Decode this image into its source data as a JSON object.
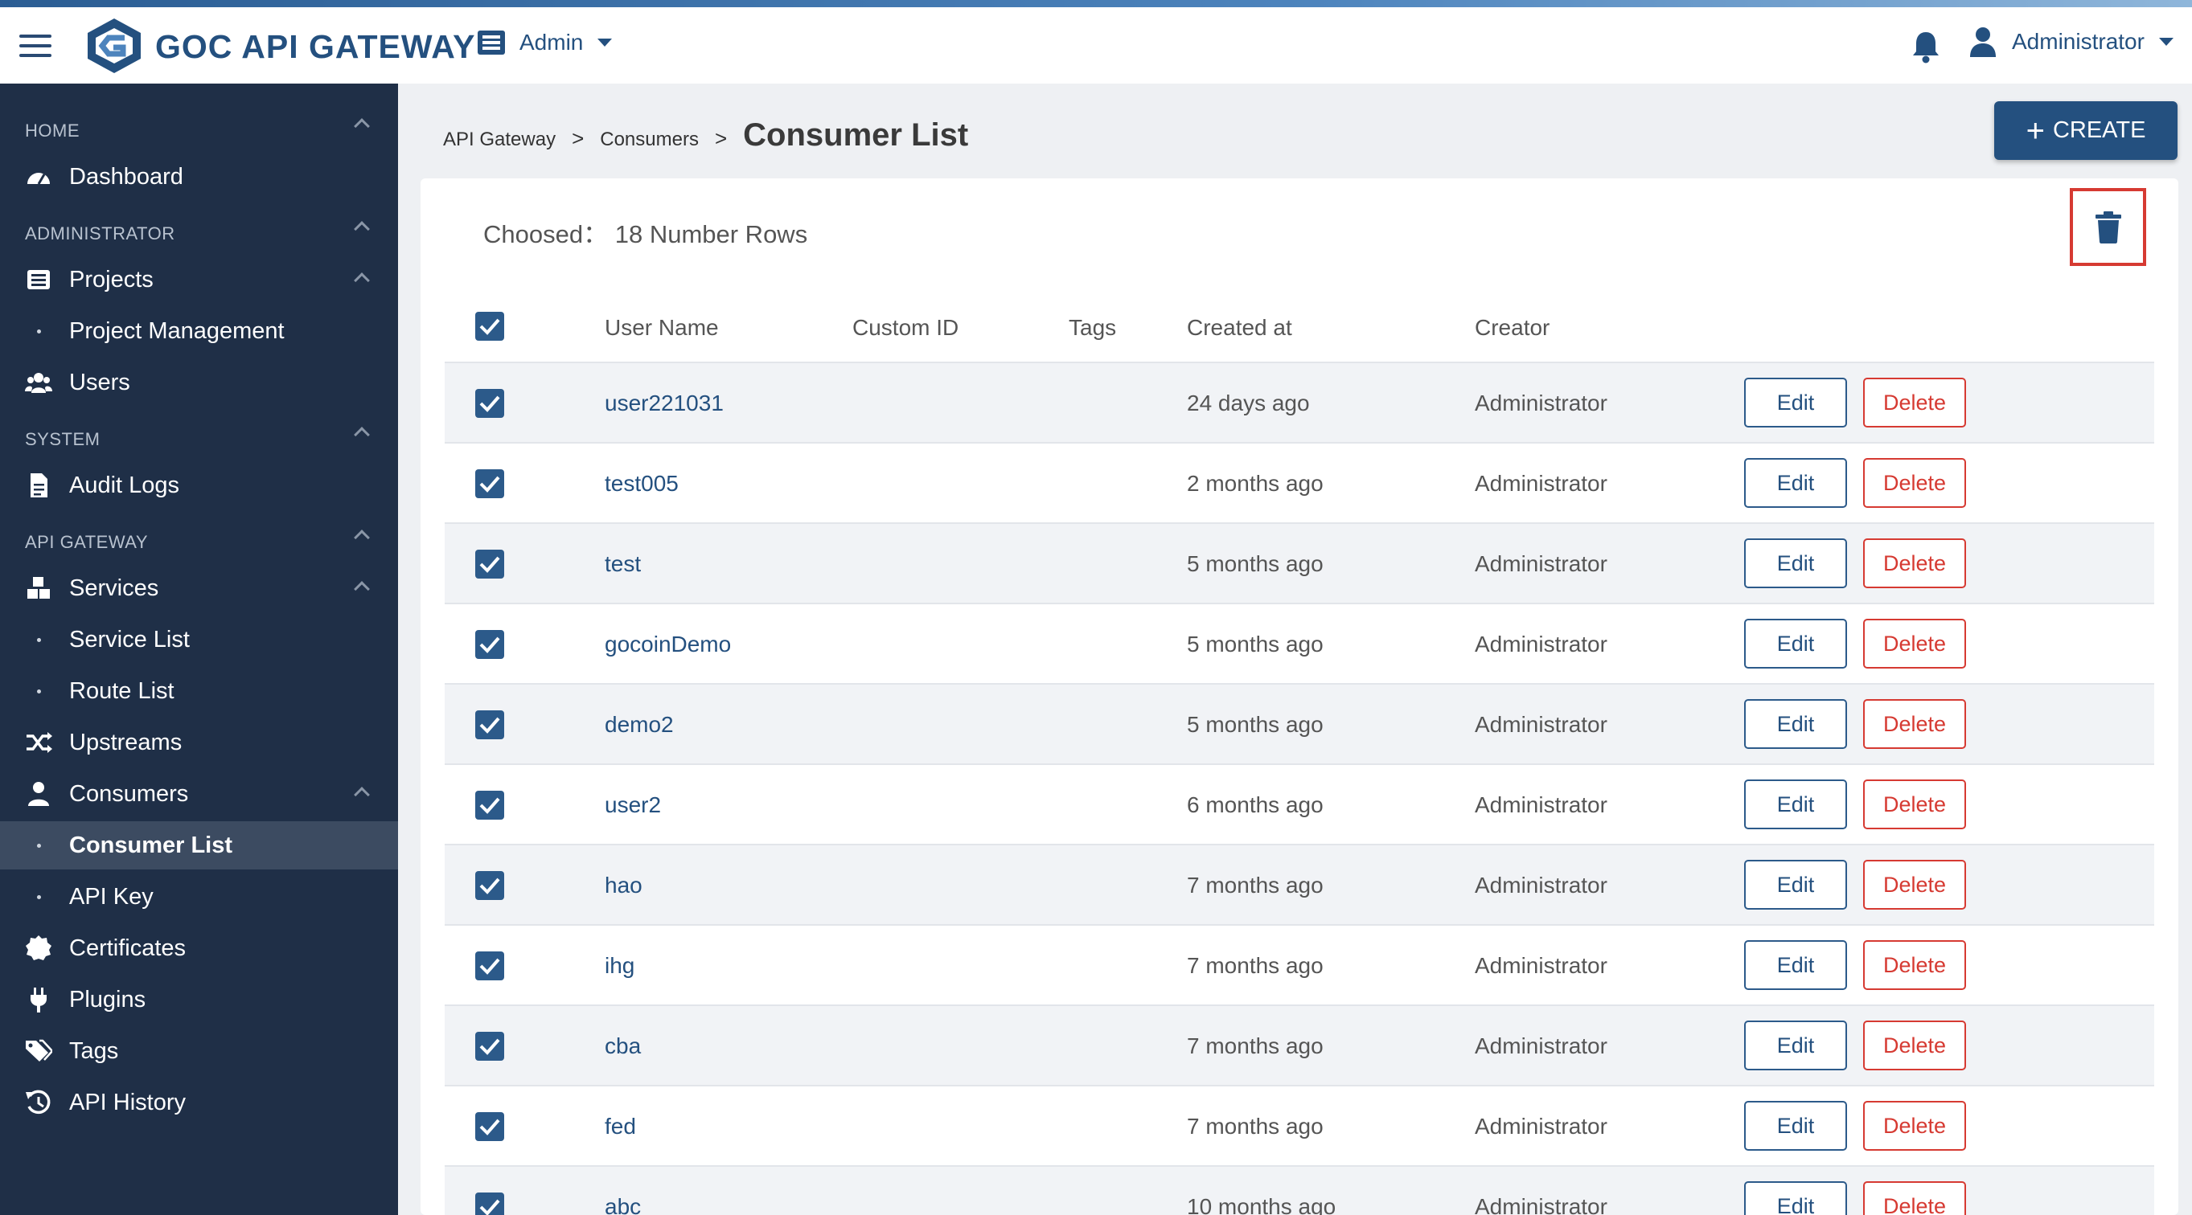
{
  "header": {
    "brand": "GOC API GATEWAY",
    "workspace": "Admin",
    "user": "Administrator"
  },
  "sidebar": {
    "sections": [
      "HOME",
      "ADMINISTRATOR",
      "SYSTEM",
      "API GATEWAY"
    ],
    "items": [
      {
        "label": "Dashboard",
        "icon": "dashboard-icon"
      },
      {
        "label": "Projects",
        "icon": "list-icon"
      },
      {
        "label": "Project Management",
        "icon": "dot"
      },
      {
        "label": "Users",
        "icon": "users-icon"
      },
      {
        "label": "Audit Logs",
        "icon": "document-icon"
      },
      {
        "label": "Services",
        "icon": "cubes-icon"
      },
      {
        "label": "Service List",
        "icon": "dot"
      },
      {
        "label": "Route List",
        "icon": "dot"
      },
      {
        "label": "Upstreams",
        "icon": "shuffle-icon"
      },
      {
        "label": "Consumers",
        "icon": "user-icon"
      },
      {
        "label": "Consumer List",
        "icon": "dot",
        "active": true
      },
      {
        "label": "API Key",
        "icon": "dot"
      },
      {
        "label": "Certificates",
        "icon": "certificate-icon"
      },
      {
        "label": "Plugins",
        "icon": "plug-icon"
      },
      {
        "label": "Tags",
        "icon": "tags-icon"
      },
      {
        "label": "API History",
        "icon": "history-icon"
      }
    ]
  },
  "breadcrumb": {
    "items": [
      "API Gateway",
      "Consumers"
    ],
    "separator": ">",
    "current": "Consumer List"
  },
  "toolbar": {
    "create_label": "CREATE"
  },
  "selection": {
    "label": "Choosed：",
    "count_text": "18 Number Rows"
  },
  "table": {
    "columns": [
      "User Name",
      "Custom ID",
      "Tags",
      "Created at",
      "Creator"
    ],
    "edit_label": "Edit",
    "delete_label": "Delete",
    "rows": [
      {
        "name": "user221031",
        "created": "24 days ago",
        "creator": "Administrator"
      },
      {
        "name": "test005",
        "created": "2 months ago",
        "creator": "Administrator"
      },
      {
        "name": "test",
        "created": "5 months ago",
        "creator": "Administrator"
      },
      {
        "name": "gocoinDemo",
        "created": "5 months ago",
        "creator": "Administrator"
      },
      {
        "name": "demo2",
        "created": "5 months ago",
        "creator": "Administrator"
      },
      {
        "name": "user2",
        "created": "6 months ago",
        "creator": "Administrator"
      },
      {
        "name": "hao",
        "created": "7 months ago",
        "creator": "Administrator"
      },
      {
        "name": "ihg",
        "created": "7 months ago",
        "creator": "Administrator"
      },
      {
        "name": "cba",
        "created": "7 months ago",
        "creator": "Administrator"
      },
      {
        "name": "fed",
        "created": "7 months ago",
        "creator": "Administrator"
      },
      {
        "name": "abc",
        "created": "10 months ago",
        "creator": "Administrator"
      }
    ]
  },
  "colors": {
    "primary": "#24507f",
    "sidebar_bg": "#1f2f47",
    "danger": "#d63a32"
  }
}
